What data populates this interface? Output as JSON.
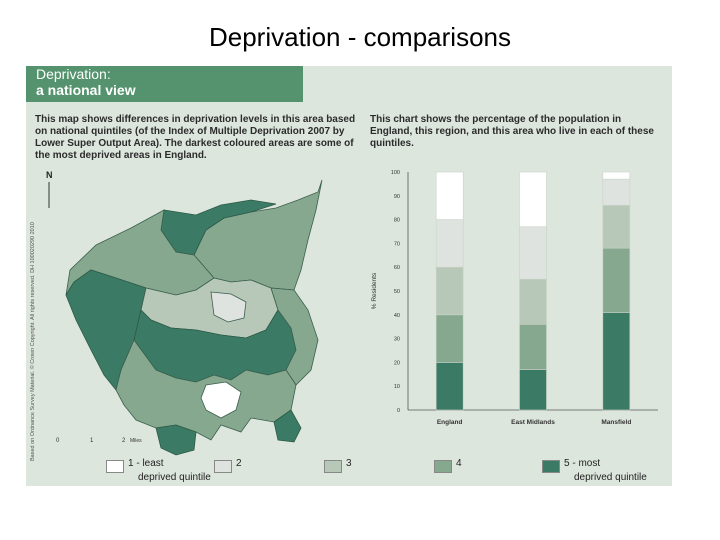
{
  "slide": {
    "title": "Deprivation - comparisons"
  },
  "header": {
    "line1": "Deprivation:",
    "line2": "a national view"
  },
  "map": {
    "description": "This map shows differences in deprivation levels in this area based on national quintiles (of the Index of Multiple Deprivation 2007 by Lower Super Output Area). The darkest coloured areas are some of the most deprived areas in England.",
    "north_label": "N",
    "scale_labels": [
      "0",
      "1",
      "2",
      "Miles"
    ],
    "copyright": "Based on Ordnance Survey Material. © Crown Copyright. All rights reserved. DH 100020290 2010"
  },
  "chart_desc": "This chart shows the percentage of the population in England, this region, and this area who live in each of these quintiles.",
  "colors": {
    "q1": "#ffffff",
    "q2": "#dfe3df",
    "q3": "#b8c8b8",
    "q4": "#86a88f",
    "q5": "#3b7b65",
    "panel": "#dde6dd",
    "header": "#54936e"
  },
  "legend": [
    {
      "label": "1 - least",
      "sub": "deprived quintile",
      "color": "#ffffff"
    },
    {
      "label": "2",
      "sub": "",
      "color": "#dfe3df"
    },
    {
      "label": "3",
      "sub": "",
      "color": "#b8c8b8"
    },
    {
      "label": "4",
      "sub": "",
      "color": "#86a88f"
    },
    {
      "label": "5 - most",
      "sub": "deprived quintile",
      "color": "#3b7b65"
    }
  ],
  "chart_data": {
    "type": "bar",
    "stacked": true,
    "ylabel": "% Residents",
    "ylim": [
      0,
      100
    ],
    "yticks": [
      0,
      10,
      20,
      30,
      40,
      50,
      60,
      70,
      80,
      90,
      100
    ],
    "categories": [
      "England",
      "East Midlands",
      "Mansfield"
    ],
    "series": [
      {
        "name": "5 - most deprived quintile",
        "values": [
          20,
          17,
          41
        ]
      },
      {
        "name": "4",
        "values": [
          20,
          19,
          27
        ]
      },
      {
        "name": "3",
        "values": [
          20,
          19,
          18
        ]
      },
      {
        "name": "2",
        "values": [
          20,
          22,
          11
        ]
      },
      {
        "name": "1 - least deprived quintile",
        "values": [
          20,
          23,
          3
        ]
      }
    ],
    "legend_position": "bottom"
  }
}
